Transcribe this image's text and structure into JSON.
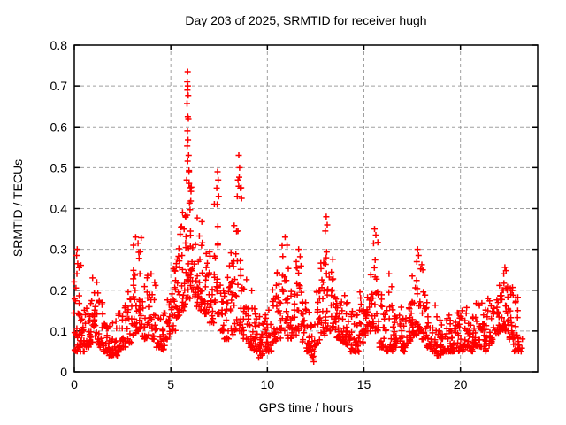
{
  "page": {
    "background": "#ffffff"
  },
  "chart_data": {
    "type": "scatter",
    "title": "Day 203 of 2025, SRMTID for receiver hugh",
    "xlabel": "GPS time / hours",
    "ylabel": "SRMTID / TECUs",
    "xlim": [
      0,
      24
    ],
    "ylim": [
      0,
      0.8
    ],
    "xticks": [
      0,
      5,
      10,
      15,
      20
    ],
    "yticks": [
      0,
      0.1,
      0.2,
      0.3,
      0.4,
      0.5,
      0.6,
      0.7,
      0.8
    ],
    "grid": {
      "show": true,
      "color": "#a0a0a0",
      "dash": "4,3"
    },
    "border_color": "#000000",
    "marker": {
      "shape": "plus",
      "color": "#ff0000",
      "size": 7,
      "stroke_width": 1.5
    },
    "legend": "none",
    "seed": 2025203,
    "bin_width_hours": 0.25,
    "density_bins": [
      [
        0.08,
        0.05,
        0.24,
        14
      ],
      [
        0.25,
        0.06,
        0.3,
        18
      ],
      [
        0.45,
        0.05,
        0.18,
        16
      ],
      [
        0.625,
        0.06,
        0.16,
        16
      ],
      [
        0.875,
        0.07,
        0.22,
        18
      ],
      [
        1.125,
        0.08,
        0.22,
        18
      ],
      [
        1.375,
        0.06,
        0.18,
        16
      ],
      [
        1.625,
        0.05,
        0.15,
        16
      ],
      [
        1.875,
        0.04,
        0.12,
        16
      ],
      [
        2.125,
        0.04,
        0.13,
        16
      ],
      [
        2.375,
        0.05,
        0.15,
        16
      ],
      [
        2.625,
        0.06,
        0.18,
        16
      ],
      [
        2.875,
        0.07,
        0.2,
        16
      ],
      [
        3.125,
        0.09,
        0.3,
        18
      ],
      [
        3.375,
        0.1,
        0.33,
        18
      ],
      [
        3.625,
        0.08,
        0.22,
        16
      ],
      [
        3.875,
        0.09,
        0.26,
        16
      ],
      [
        4.125,
        0.08,
        0.22,
        16
      ],
      [
        4.375,
        0.06,
        0.16,
        16
      ],
      [
        4.625,
        0.05,
        0.15,
        16
      ],
      [
        4.875,
        0.08,
        0.2,
        16
      ],
      [
        5.125,
        0.1,
        0.28,
        18
      ],
      [
        5.375,
        0.13,
        0.38,
        18
      ],
      [
        5.625,
        0.15,
        0.44,
        18
      ],
      [
        5.875,
        0.18,
        0.58,
        20
      ],
      [
        6.125,
        0.2,
        0.47,
        20
      ],
      [
        6.375,
        0.16,
        0.42,
        18
      ],
      [
        6.625,
        0.15,
        0.38,
        16
      ],
      [
        6.875,
        0.14,
        0.33,
        16
      ],
      [
        7.125,
        0.12,
        0.3,
        16
      ],
      [
        7.375,
        0.14,
        0.44,
        18
      ],
      [
        7.625,
        0.1,
        0.3,
        16
      ],
      [
        7.875,
        0.08,
        0.25,
        16
      ],
      [
        8.125,
        0.09,
        0.3,
        16
      ],
      [
        8.375,
        0.1,
        0.36,
        16
      ],
      [
        8.625,
        0.1,
        0.48,
        18
      ],
      [
        8.875,
        0.08,
        0.28,
        16
      ],
      [
        9.125,
        0.06,
        0.2,
        16
      ],
      [
        9.375,
        0.05,
        0.16,
        16
      ],
      [
        9.625,
        0.04,
        0.14,
        16
      ],
      [
        9.875,
        0.05,
        0.15,
        16
      ],
      [
        10.125,
        0.05,
        0.17,
        16
      ],
      [
        10.375,
        0.07,
        0.22,
        16
      ],
      [
        10.625,
        0.08,
        0.25,
        16
      ],
      [
        10.875,
        0.1,
        0.31,
        16
      ],
      [
        11.125,
        0.08,
        0.26,
        16
      ],
      [
        11.375,
        0.09,
        0.28,
        16
      ],
      [
        11.625,
        0.1,
        0.29,
        16
      ],
      [
        11.875,
        0.07,
        0.2,
        16
      ],
      [
        12.125,
        0.05,
        0.16,
        16
      ],
      [
        12.375,
        0.03,
        0.13,
        16
      ],
      [
        12.625,
        0.06,
        0.2,
        16
      ],
      [
        12.875,
        0.09,
        0.28,
        16
      ],
      [
        13.125,
        0.1,
        0.34,
        18
      ],
      [
        13.375,
        0.1,
        0.28,
        16
      ],
      [
        13.625,
        0.08,
        0.22,
        16
      ],
      [
        13.875,
        0.07,
        0.2,
        16
      ],
      [
        14.125,
        0.06,
        0.18,
        16
      ],
      [
        14.375,
        0.05,
        0.15,
        16
      ],
      [
        14.625,
        0.04,
        0.14,
        16
      ],
      [
        14.875,
        0.07,
        0.2,
        16
      ],
      [
        15.125,
        0.09,
        0.24,
        16
      ],
      [
        15.375,
        0.1,
        0.28,
        16
      ],
      [
        15.625,
        0.1,
        0.32,
        18
      ],
      [
        15.875,
        0.06,
        0.2,
        16
      ],
      [
        16.125,
        0.05,
        0.16,
        16
      ],
      [
        16.375,
        0.05,
        0.22,
        16
      ],
      [
        16.625,
        0.06,
        0.17,
        16
      ],
      [
        16.875,
        0.06,
        0.16,
        16
      ],
      [
        17.125,
        0.05,
        0.15,
        16
      ],
      [
        17.375,
        0.07,
        0.2,
        16
      ],
      [
        17.625,
        0.09,
        0.26,
        16
      ],
      [
        17.875,
        0.1,
        0.28,
        16
      ],
      [
        18.125,
        0.08,
        0.25,
        16
      ],
      [
        18.375,
        0.06,
        0.2,
        16
      ],
      [
        18.625,
        0.05,
        0.17,
        16
      ],
      [
        18.875,
        0.04,
        0.14,
        16
      ],
      [
        19.125,
        0.05,
        0.15,
        16
      ],
      [
        19.375,
        0.05,
        0.16,
        16
      ],
      [
        19.625,
        0.05,
        0.14,
        16
      ],
      [
        19.875,
        0.05,
        0.15,
        16
      ],
      [
        20.125,
        0.05,
        0.16,
        16
      ],
      [
        20.375,
        0.06,
        0.18,
        16
      ],
      [
        20.625,
        0.05,
        0.16,
        16
      ],
      [
        20.875,
        0.06,
        0.17,
        16
      ],
      [
        21.125,
        0.06,
        0.18,
        16
      ],
      [
        21.375,
        0.05,
        0.19,
        16
      ],
      [
        21.625,
        0.07,
        0.2,
        16
      ],
      [
        21.875,
        0.09,
        0.22,
        16
      ],
      [
        22.125,
        0.1,
        0.25,
        18
      ],
      [
        22.375,
        0.1,
        0.26,
        18
      ],
      [
        22.625,
        0.08,
        0.22,
        18
      ],
      [
        22.875,
        0.05,
        0.2,
        16
      ],
      [
        23.1,
        0.05,
        0.14,
        10
      ]
    ],
    "peak_points": [
      [
        5.87,
        0.735
      ],
      [
        5.85,
        0.71
      ],
      [
        5.88,
        0.7
      ],
      [
        5.86,
        0.69
      ],
      [
        5.9,
        0.677
      ],
      [
        5.84,
        0.657
      ],
      [
        5.88,
        0.625
      ],
      [
        5.91,
        0.62
      ],
      [
        5.86,
        0.59
      ],
      [
        5.89,
        0.568
      ],
      [
        5.85,
        0.553
      ],
      [
        5.92,
        0.53
      ],
      [
        5.87,
        0.516
      ],
      [
        5.94,
        0.49
      ],
      [
        5.82,
        0.47
      ],
      [
        7.42,
        0.49
      ],
      [
        7.45,
        0.47
      ],
      [
        7.38,
        0.45
      ],
      [
        7.48,
        0.43
      ],
      [
        7.4,
        0.41
      ],
      [
        8.52,
        0.53
      ],
      [
        8.56,
        0.5
      ],
      [
        8.48,
        0.47
      ],
      [
        8.6,
        0.45
      ],
      [
        8.44,
        0.43
      ],
      [
        13.05,
        0.38
      ],
      [
        13.1,
        0.36
      ],
      [
        13.0,
        0.345
      ],
      [
        15.55,
        0.35
      ],
      [
        15.62,
        0.335
      ],
      [
        15.5,
        0.315
      ],
      [
        17.78,
        0.3
      ],
      [
        17.83,
        0.285
      ],
      [
        17.74,
        0.27
      ],
      [
        3.18,
        0.33
      ],
      [
        3.3,
        0.315
      ],
      [
        3.06,
        0.31
      ],
      [
        0.15,
        0.3
      ],
      [
        0.12,
        0.285
      ],
      [
        0.18,
        0.265
      ],
      [
        22.3,
        0.256
      ],
      [
        22.36,
        0.248
      ],
      [
        22.24,
        0.24
      ],
      [
        10.92,
        0.33
      ],
      [
        11.02,
        0.31
      ],
      [
        11.62,
        0.3
      ],
      [
        16.3,
        0.24
      ],
      [
        18.05,
        0.25
      ],
      [
        0.95,
        0.23
      ],
      [
        12.4,
        0.025
      ],
      [
        9.55,
        0.035
      ]
    ]
  }
}
